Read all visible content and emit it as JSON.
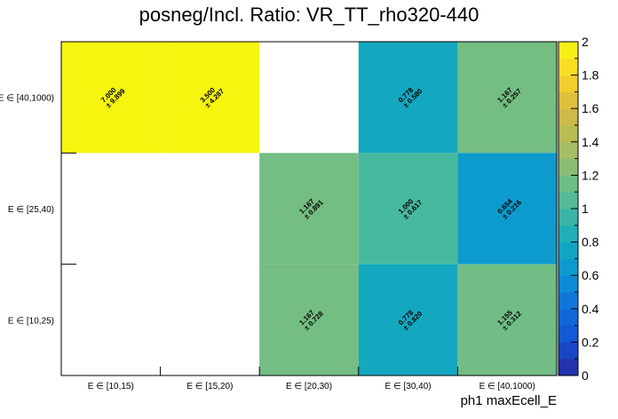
{
  "chart_data": {
    "type": "heatmap",
    "title": "posneg/Incl. Ratio: VR_TT_rho320-440",
    "xlabel": "ph1 maxEcell_E",
    "ylabel": "",
    "x_categories": [
      "E ∈ [10,15)",
      "E ∈ [15,20)",
      "E ∈ [20,30)",
      "E ∈ [30,40)",
      "E ∈ [40,1000)"
    ],
    "y_categories": [
      "E ∈ [40,1000)",
      "E ∈ [25,40)",
      "E ∈ [10,25)"
    ],
    "cells": [
      {
        "x": 0,
        "y": 0,
        "value": "7.000",
        "error": "± 9.899",
        "z": 2.0
      },
      {
        "x": 1,
        "y": 0,
        "value": "3.500",
        "error": "± 4.287",
        "z": 2.0
      },
      {
        "x": 3,
        "y": 0,
        "value": "0.778",
        "error": "± 0.580",
        "z": 0.778
      },
      {
        "x": 4,
        "y": 0,
        "value": "1.167",
        "error": "± 0.257",
        "z": 1.167
      },
      {
        "x": 2,
        "y": 1,
        "value": "1.167",
        "error": "± 0.891",
        "z": 1.167
      },
      {
        "x": 3,
        "y": 1,
        "value": "1.000",
        "error": "± 0.617",
        "z": 1.0
      },
      {
        "x": 4,
        "y": 1,
        "value": "0.654",
        "error": "± 0.216",
        "z": 0.654
      },
      {
        "x": 2,
        "y": 2,
        "value": "1.167",
        "error": "± 0.728",
        "z": 1.167
      },
      {
        "x": 3,
        "y": 2,
        "value": "0.778",
        "error": "± 0.820",
        "z": 0.778
      },
      {
        "x": 4,
        "y": 2,
        "value": "1.155",
        "error": "± 0.312",
        "z": 1.155
      }
    ],
    "zlim": [
      0,
      2
    ],
    "z_ticks": [
      "0",
      "0.2",
      "0.4",
      "0.6",
      "0.8",
      "1",
      "1.2",
      "1.4",
      "1.6",
      "1.8",
      "2"
    ],
    "colors": {
      "high": "#f5f20f",
      "teal_blue": "#0fa6c8",
      "green": "#74bd82",
      "cyan_green": "#4bba9e",
      "blue": "#0a9ad0"
    }
  }
}
